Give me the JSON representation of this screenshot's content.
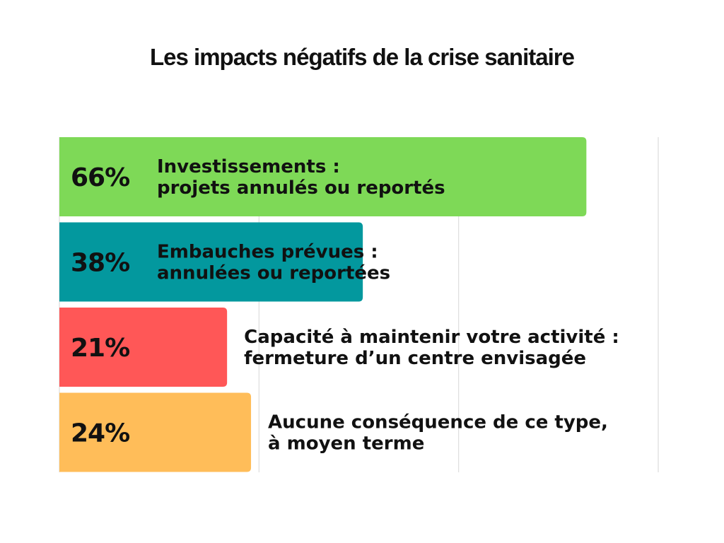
{
  "chart_data": {
    "type": "bar",
    "orientation": "horizontal",
    "title": "Les impacts négatifs de la crise sanitaire",
    "categories": [
      [
        "Investissements :",
        "projets annulés ou reportés"
      ],
      [
        "Embauches prévues :",
        "annulées ou reportées"
      ],
      [
        "Capacité à maintenir votre activité :",
        "fermeture d’un centre envisagée"
      ],
      [
        "Aucune conséquence de ce type,",
        "à moyen terme"
      ]
    ],
    "values": [
      66,
      38,
      21,
      24
    ],
    "value_labels": [
      "66%",
      "38%",
      "21%",
      "24%"
    ],
    "colors": [
      "#7ed957",
      "#03989e",
      "#ff5757",
      "#ffbd59"
    ],
    "xlim": [
      0,
      75
    ],
    "gridlines": [
      0,
      25,
      50,
      75
    ],
    "grid": true,
    "axis_tick_labels": false,
    "legend": false
  }
}
